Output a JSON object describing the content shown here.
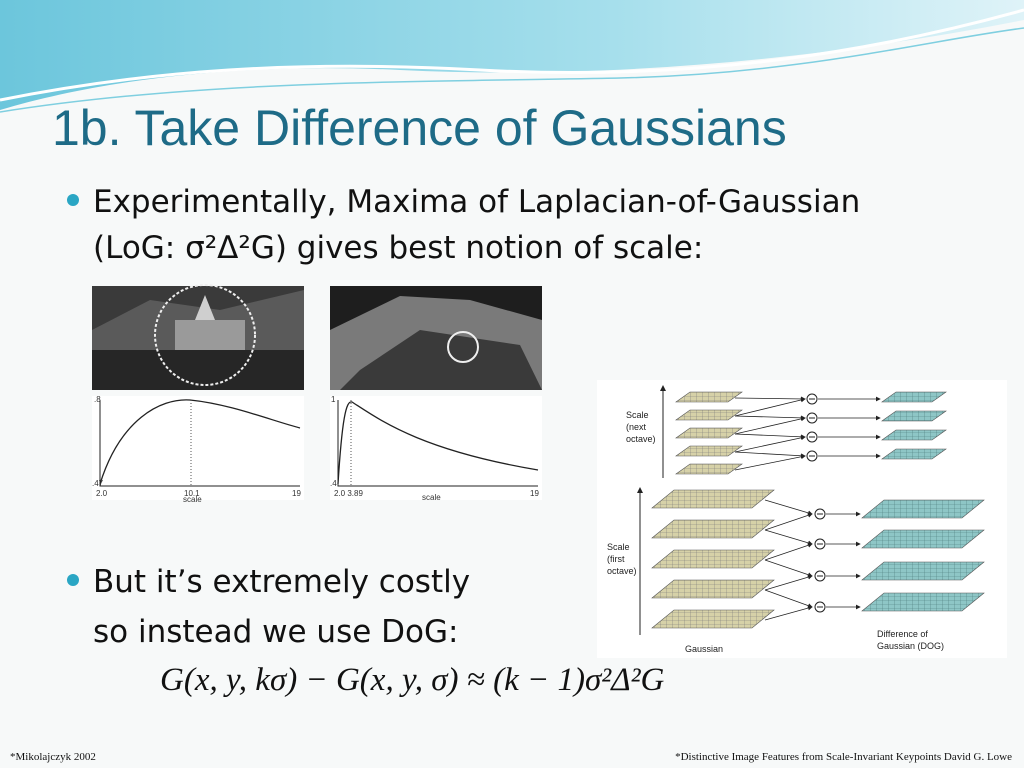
{
  "title": "1b. Take Difference of Gaussians",
  "bullets": [
    {
      "lines": [
        "Experimentally, Maxima of Laplacian-of-Gaussian",
        "(LoG: σ²Δ²G) gives best notion of scale:"
      ]
    },
    {
      "lines": [
        "But it’s extremely costly",
        "so instead we use DoG:"
      ]
    }
  ],
  "formula": "G(x, y, kσ) − G(x, y, σ) ≈ (k − 1)σ²Δ²G",
  "plots": [
    {
      "y_top": ".8",
      "y_bottom": ".47",
      "x_labels": [
        "2.0",
        "10.1",
        "19"
      ],
      "x_title": "scale"
    },
    {
      "y_top": "1",
      "y_bottom": ".4",
      "x_labels": [
        "2.0 3.89",
        "19"
      ],
      "x_title": "scale"
    }
  ],
  "diagram": {
    "scale_next": [
      "Scale",
      "(next",
      "octave)"
    ],
    "scale_first": [
      "Scale",
      "(first",
      "octave)"
    ],
    "gaussian": "Gaussian",
    "dog": [
      "Difference of",
      "Gaussian (DOG)"
    ]
  },
  "footnotes": {
    "left": "*Mikolajczyk 2002",
    "right": "*Distinctive Image Features from Scale-Invariant Keypoints David G. Lowe"
  }
}
